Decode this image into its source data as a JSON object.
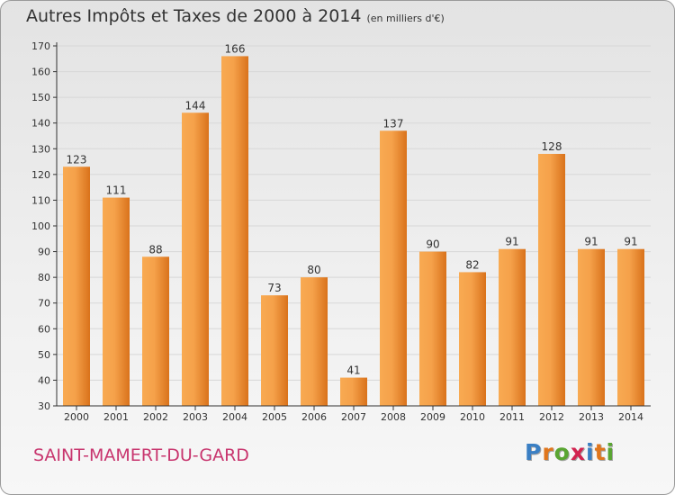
{
  "chart_title": "Autres Impôts et Taxes de 2000 à 2014",
  "chart_subtitle": "(en milliers d'€)",
  "commune": "SAINT-MAMERT-DU-GARD",
  "logo": {
    "text": "Proxiti",
    "letter_colors": [
      "#3a7fc4",
      "#e0761c",
      "#59a532",
      "#d2234f",
      "#3a7fc4",
      "#e0761c",
      "#59a532"
    ]
  },
  "colors": {
    "bar_light": "#f8aa52",
    "bar_dark": "#d9721b",
    "axis": "#333333",
    "grid": "#d7d7d7"
  },
  "chart_data": {
    "type": "bar",
    "categories": [
      "2000",
      "2001",
      "2002",
      "2003",
      "2004",
      "2005",
      "2006",
      "2007",
      "2008",
      "2009",
      "2010",
      "2011",
      "2012",
      "2013",
      "2014"
    ],
    "values": [
      123,
      111,
      88,
      144,
      166,
      73,
      80,
      41,
      137,
      90,
      82,
      91,
      128,
      91,
      91
    ],
    "data_labels": [
      "123",
      "111",
      "88",
      "144",
      "166",
      "73",
      "80",
      "41",
      "137",
      "90",
      "82",
      "91",
      "128",
      "91",
      "91"
    ],
    "yticks": [
      30,
      40,
      50,
      60,
      70,
      80,
      90,
      100,
      110,
      120,
      130,
      140,
      150,
      160,
      170
    ],
    "ylim": [
      30,
      170
    ],
    "grid": true,
    "legend": "none"
  }
}
